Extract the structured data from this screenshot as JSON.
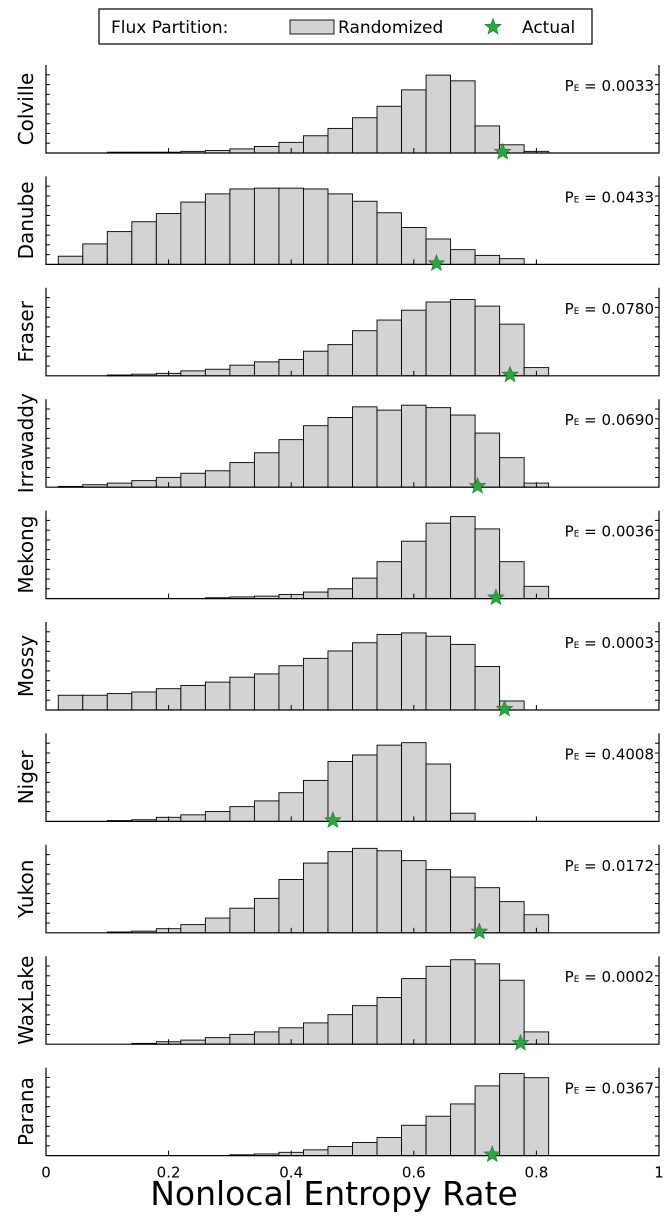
{
  "chart_data": {
    "type": "bar",
    "legend": {
      "title": "Flux Partition:",
      "entries": [
        {
          "label": "Randomized",
          "marker": "bar",
          "color": "#d3d3d3"
        },
        {
          "label": "Actual",
          "marker": "star",
          "color": "#2aa542"
        }
      ]
    },
    "xlabel": "Nonlocal Entropy Rate",
    "xlim": [
      0,
      1
    ],
    "xticks": [
      "0",
      "0.2",
      "0.4",
      "0.6",
      "0.8",
      "1"
    ],
    "xtick_values": [
      0,
      0.2,
      0.4,
      0.6,
      0.8,
      1
    ],
    "bin_width": 0.04,
    "panels": [
      {
        "name": "Colville",
        "pe_label": "P",
        "pe_sub": "E",
        "pe_value": "= 0.0033",
        "ymax": 1.0,
        "actual": 0.745,
        "bins": [
          0.1,
          0.14,
          0.18,
          0.22,
          0.26,
          0.3,
          0.34,
          0.38,
          0.42,
          0.46,
          0.5,
          0.54,
          0.58,
          0.62,
          0.66,
          0.7,
          0.74,
          0.78
        ],
        "values": [
          0.01,
          0.01,
          0.01,
          0.02,
          0.03,
          0.05,
          0.08,
          0.13,
          0.21,
          0.3,
          0.43,
          0.57,
          0.77,
          0.95,
          0.88,
          0.33,
          0.1,
          0.02
        ]
      },
      {
        "name": "Danube",
        "pe_label": "P",
        "pe_sub": "E",
        "pe_value": "= 0.0433",
        "ymax": 1.0,
        "actual": 0.637,
        "bins": [
          0.02,
          0.06,
          0.1,
          0.14,
          0.18,
          0.22,
          0.26,
          0.3,
          0.34,
          0.38,
          0.42,
          0.46,
          0.5,
          0.54,
          0.58,
          0.62,
          0.66,
          0.7,
          0.74
        ],
        "values": [
          0.1,
          0.25,
          0.4,
          0.52,
          0.62,
          0.76,
          0.86,
          0.92,
          0.93,
          0.93,
          0.92,
          0.86,
          0.77,
          0.63,
          0.45,
          0.31,
          0.18,
          0.11,
          0.07
        ]
      },
      {
        "name": "Fraser",
        "pe_label": "P",
        "pe_sub": "E",
        "pe_value": "= 0.0780",
        "ymax": 1.0,
        "actual": 0.757,
        "bins": [
          0.1,
          0.14,
          0.18,
          0.22,
          0.26,
          0.3,
          0.34,
          0.38,
          0.42,
          0.46,
          0.5,
          0.54,
          0.58,
          0.62,
          0.66,
          0.7,
          0.74,
          0.78
        ],
        "values": [
          0.01,
          0.02,
          0.03,
          0.06,
          0.08,
          0.13,
          0.17,
          0.2,
          0.3,
          0.38,
          0.55,
          0.68,
          0.8,
          0.9,
          0.93,
          0.85,
          0.63,
          0.1
        ]
      },
      {
        "name": "Irrawaddy",
        "pe_label": "P",
        "pe_sub": "E",
        "pe_value": "= 0.0690",
        "ymax": 1.0,
        "actual": 0.704,
        "bins": [
          0.02,
          0.06,
          0.1,
          0.14,
          0.18,
          0.22,
          0.26,
          0.3,
          0.34,
          0.38,
          0.42,
          0.46,
          0.5,
          0.54,
          0.58,
          0.62,
          0.66,
          0.7,
          0.74,
          0.78
        ],
        "values": [
          0.01,
          0.03,
          0.05,
          0.08,
          0.12,
          0.17,
          0.2,
          0.3,
          0.42,
          0.58,
          0.75,
          0.85,
          0.98,
          0.94,
          1.0,
          0.97,
          0.88,
          0.66,
          0.36,
          0.05
        ]
      },
      {
        "name": "Mekong",
        "pe_label": "P",
        "pe_sub": "E",
        "pe_value": "= 0.0036",
        "ymax": 1.0,
        "actual": 0.734,
        "bins": [
          0.26,
          0.3,
          0.34,
          0.38,
          0.42,
          0.46,
          0.5,
          0.54,
          0.58,
          0.62,
          0.66,
          0.7,
          0.74,
          0.78
        ],
        "values": [
          0.01,
          0.02,
          0.03,
          0.05,
          0.08,
          0.12,
          0.25,
          0.45,
          0.7,
          0.92,
          1.0,
          0.85,
          0.45,
          0.15
        ]
      },
      {
        "name": "Mossy",
        "pe_label": "P",
        "pe_sub": "E",
        "pe_value": "= 0.0003",
        "ymax": 1.0,
        "actual": 0.748,
        "bins": [
          0.02,
          0.06,
          0.1,
          0.14,
          0.18,
          0.22,
          0.26,
          0.3,
          0.34,
          0.38,
          0.42,
          0.46,
          0.5,
          0.54,
          0.58,
          0.62,
          0.66,
          0.7,
          0.74
        ],
        "values": [
          0.18,
          0.18,
          0.2,
          0.22,
          0.26,
          0.3,
          0.34,
          0.4,
          0.44,
          0.54,
          0.63,
          0.72,
          0.82,
          0.92,
          0.94,
          0.9,
          0.8,
          0.53,
          0.11
        ]
      },
      {
        "name": "Niger",
        "pe_label": "P",
        "pe_sub": "E",
        "pe_value": "= 0.4008",
        "ymax": 1.0,
        "actual": 0.468,
        "bins": [
          0.1,
          0.14,
          0.18,
          0.22,
          0.26,
          0.3,
          0.34,
          0.38,
          0.42,
          0.46,
          0.5,
          0.54,
          0.58,
          0.62,
          0.66
        ],
        "values": [
          0.01,
          0.02,
          0.05,
          0.08,
          0.12,
          0.18,
          0.25,
          0.35,
          0.5,
          0.73,
          0.81,
          0.93,
          0.96,
          0.7,
          0.1
        ]
      },
      {
        "name": "Yukon",
        "pe_label": "P",
        "pe_sub": "E",
        "pe_value": "= 0.0172",
        "ymax": 1.0,
        "actual": 0.707,
        "bins": [
          0.1,
          0.14,
          0.18,
          0.22,
          0.26,
          0.3,
          0.34,
          0.38,
          0.42,
          0.46,
          0.5,
          0.54,
          0.58,
          0.62,
          0.66,
          0.7,
          0.74,
          0.78
        ],
        "values": [
          0.01,
          0.02,
          0.05,
          0.1,
          0.18,
          0.3,
          0.42,
          0.65,
          0.85,
          0.99,
          1.03,
          1.0,
          0.88,
          0.77,
          0.68,
          0.55,
          0.38,
          0.22
        ]
      },
      {
        "name": "WaxLake",
        "pe_label": "P",
        "pe_sub": "E",
        "pe_value": "= 0.0002",
        "ymax": 1.0,
        "actual": 0.774,
        "bins": [
          0.14,
          0.18,
          0.22,
          0.26,
          0.3,
          0.34,
          0.38,
          0.42,
          0.46,
          0.5,
          0.54,
          0.58,
          0.62,
          0.66,
          0.7,
          0.74,
          0.78
        ],
        "values": [
          0.01,
          0.03,
          0.05,
          0.08,
          0.12,
          0.15,
          0.2,
          0.26,
          0.36,
          0.47,
          0.57,
          0.8,
          0.95,
          1.03,
          0.98,
          0.78,
          0.15
        ]
      },
      {
        "name": "Parana",
        "pe_label": "P",
        "pe_sub": "E",
        "pe_value": "= 0.0367",
        "ymax": 1.0,
        "actual": 0.728,
        "bins": [
          0.3,
          0.34,
          0.38,
          0.42,
          0.46,
          0.5,
          0.54,
          0.58,
          0.62,
          0.66,
          0.7,
          0.74,
          0.78
        ],
        "values": [
          0.01,
          0.02,
          0.04,
          0.07,
          0.11,
          0.16,
          0.22,
          0.37,
          0.48,
          0.63,
          0.85,
          1.0,
          0.95
        ]
      }
    ]
  }
}
